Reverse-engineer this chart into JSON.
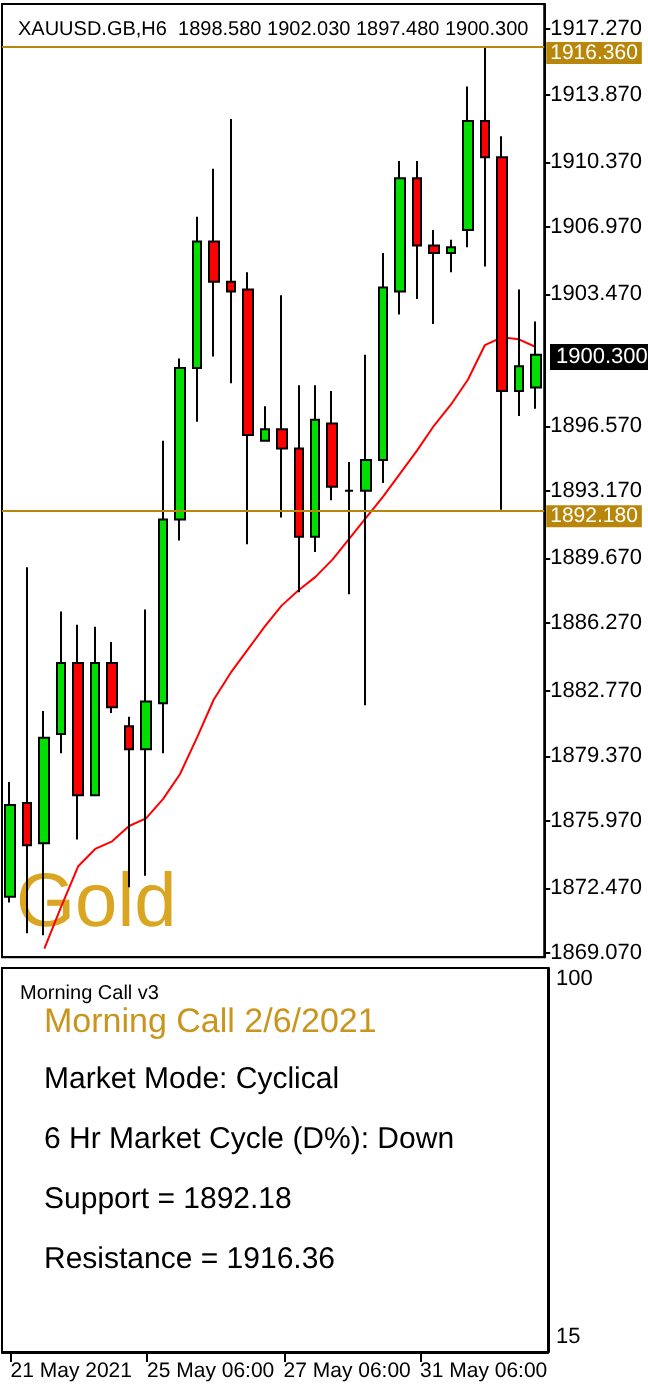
{
  "chart_data": [
    {
      "type": "candlestick",
      "title": "XAUUSD.GB,H6  1898.580 1902.030 1897.480 1900.300",
      "categories": [
        null,
        null,
        null,
        null,
        null,
        null,
        null,
        null,
        null,
        null,
        null,
        null,
        null,
        null,
        null,
        null,
        null,
        null,
        null,
        null,
        null,
        null,
        null,
        null,
        null,
        null,
        null,
        null,
        null,
        null,
        null,
        null
      ],
      "series": [
        {
          "type": "candlestick",
          "ohlc": [
            [
              1872.0,
              1878.0,
              1871.7,
              1876.8
            ],
            [
              1876.9,
              1889.2,
              1870.1,
              1874.7
            ],
            [
              1874.8,
              1881.7,
              1870.0,
              1880.3
            ],
            [
              1880.5,
              1886.9,
              1879.5,
              1884.2
            ],
            [
              1884.2,
              1886.2,
              1875.0,
              1877.3
            ],
            [
              1877.3,
              1886.1,
              1877.3,
              1884.2
            ],
            [
              1884.2,
              1885.3,
              1881.6,
              1881.9
            ],
            [
              1880.9,
              1881.4,
              1872.5,
              1879.7
            ],
            [
              1879.7,
              1887.0,
              1873.1,
              1882.2
            ],
            [
              1882.1,
              1895.8,
              1879.5,
              1891.7
            ],
            [
              1891.7,
              1900.1,
              1890.6,
              1899.6
            ],
            [
              1899.6,
              1907.5,
              1896.8,
              1906.2
            ],
            [
              1906.2,
              1910.0,
              1900.2,
              1904.1
            ],
            [
              1904.1,
              1912.6,
              1898.8,
              1903.6
            ],
            [
              1903.7,
              1904.6,
              1890.4,
              1896.1
            ],
            [
              1895.8,
              1897.6,
              1895.8,
              1896.4
            ],
            [
              1896.4,
              1903.4,
              1891.8,
              1895.4
            ],
            [
              1895.4,
              1898.7,
              1887.9,
              1890.8
            ],
            [
              1890.8,
              1898.7,
              1890.0,
              1896.9
            ],
            [
              1896.7,
              1898.4,
              1892.7,
              1893.4
            ],
            [
              1893.2,
              1894.7,
              1887.8,
              1893.2
            ],
            [
              1893.2,
              1900.3,
              1882.0,
              1894.8
            ],
            [
              1894.8,
              1905.6,
              1893.6,
              1903.8
            ],
            [
              1903.6,
              1910.4,
              1902.4,
              1909.5
            ],
            [
              1909.5,
              1910.4,
              1903.2,
              1906.0
            ],
            [
              1906.0,
              1906.8,
              1901.9,
              1905.6
            ],
            [
              1905.6,
              1906.3,
              1904.6,
              1905.9
            ],
            [
              1906.8,
              1914.3,
              1905.9,
              1912.5
            ],
            [
              1912.5,
              1916.36,
              1904.9,
              1910.6
            ],
            [
              1910.6,
              1911.7,
              1892.2,
              1898.4
            ],
            [
              1898.4,
              1903.7,
              1897.1,
              1899.7
            ],
            [
              1898.58,
              1902.03,
              1897.48,
              1900.3
            ]
          ],
          "colors": [
            "#00e000",
            "#ff0000",
            "#00e000",
            "#00e000",
            "#ff0000",
            "#00e000",
            "#ff0000",
            "#ff0000",
            "#00e000",
            "#00e000",
            "#00e000",
            "#00e000",
            "#ff0000",
            "#ff0000",
            "#ff0000",
            "#00e000",
            "#ff0000",
            "#ff0000",
            "#00e000",
            "#ff0000",
            "#000000",
            "#00e000",
            "#00e000",
            "#00e000",
            "#ff0000",
            "#ff0000",
            "#00e000",
            "#00e000",
            "#ff0000",
            "#ff0000",
            "#00e000",
            "#00e000"
          ]
        },
        {
          "type": "line",
          "color": "#ff0000",
          "values": [
            null,
            null,
            1869.3,
            1871.5,
            1873.6,
            1874.5,
            1874.9,
            1875.7,
            1876.1,
            1877.1,
            1878.4,
            1880.3,
            1882.3,
            1883.7,
            1884.9,
            1886.1,
            1887.2,
            1888.0,
            1888.7,
            1889.6,
            1890.7,
            1891.8,
            1892.9,
            1894.1,
            1895.3,
            1896.6,
            1897.7,
            1899.0,
            1900.8,
            1901.2,
            1901.1,
            1900.7
          ]
        }
      ],
      "ylim": [
        1868.85,
        1918.6
      ],
      "yticks": [
        {
          "value": 1917.27,
          "label": "1917.270"
        },
        {
          "value": 1913.87,
          "label": "1913.870"
        },
        {
          "value": 1910.37,
          "label": "1910.370"
        },
        {
          "value": 1906.97,
          "label": "1906.970"
        },
        {
          "value": 1903.47,
          "label": "1903.470"
        },
        {
          "value": 1896.57,
          "label": "1896.570"
        },
        {
          "value": 1893.17,
          "label": "1893.170"
        },
        {
          "value": 1889.67,
          "label": "1889.670"
        },
        {
          "value": 1886.27,
          "label": "1886.270"
        },
        {
          "value": 1882.77,
          "label": "1882.770"
        },
        {
          "value": 1879.37,
          "label": "1879.370"
        },
        {
          "value": 1875.97,
          "label": "1875.970"
        },
        {
          "value": 1872.47,
          "label": "1872.470"
        },
        {
          "value": 1869.07,
          "label": "1869.070"
        }
      ],
      "ref_lines": [
        {
          "axis": "y",
          "value": 1916.36,
          "label": "1916.360",
          "color": "#b8860b"
        },
        {
          "axis": "y",
          "value": 1892.18,
          "label": "1892.180",
          "color": "#b8860b"
        }
      ],
      "annotations": [
        "Gold",
        "1900.300"
      ],
      "marker": "none",
      "line_style": "solid",
      "grid": false,
      "tick_labels": "y"
    },
    {
      "type": "other",
      "title": "Morning Call v3",
      "categories": [
        "21 May 2021",
        null,
        null,
        null,
        null,
        null,
        null,
        null,
        "25 May 06:00",
        null,
        null,
        null,
        null,
        null,
        null,
        null,
        "27 May 06:00",
        null,
        null,
        null,
        null,
        null,
        null,
        null,
        "31 May 06:00",
        null,
        null,
        null,
        null,
        null,
        null,
        null
      ],
      "annotations": [
        "100",
        "Morning Call 2/6/2021",
        "Market Mode: Cyclical",
        "6 Hr Market Cycle (D%): Down",
        "Support = 1892.18",
        "Resistance = 1916.36",
        "15"
      ]
    }
  ]
}
